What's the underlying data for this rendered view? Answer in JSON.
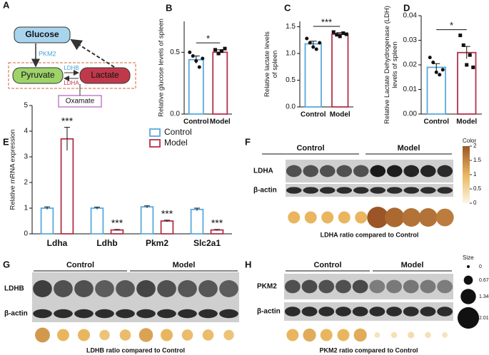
{
  "panel_labels": [
    "A",
    "B",
    "C",
    "D",
    "E",
    "F",
    "G",
    "H"
  ],
  "diagram": {
    "nodes": [
      "Glucose",
      "Pyruvate",
      "Lactate",
      "Oxamate"
    ],
    "edge_labels": [
      "PKM2",
      "LDHB",
      "LDHA"
    ]
  },
  "chart_data": [
    {
      "type": "bar",
      "y_label": [
        "Relative glucose levels of spleen"
      ],
      "categories": [
        "Control",
        "Model"
      ],
      "colors": [
        "#5aa9dc",
        "#b5314a"
      ],
      "values": [
        0.44,
        0.5
      ],
      "errors": [
        0.03,
        0.02
      ],
      "points": [
        [
          0.5,
          0.47,
          0.43,
          0.38,
          0.45
        ],
        [
          0.52,
          0.49,
          0.51,
          0.53
        ]
      ],
      "ylim": [
        0,
        0.75
      ],
      "yticks": [
        {
          "value": 0,
          "label": "0.0"
        },
        {
          "value": 0.5,
          "label": "0.5"
        }
      ],
      "significance": "*"
    },
    {
      "type": "bar",
      "y_label": [
        "Relative lactate levels",
        "of spleen"
      ],
      "categories": [
        "Control",
        "Model"
      ],
      "colors": [
        "#5aa9dc",
        "#b5314a"
      ],
      "values": [
        1.18,
        1.36
      ],
      "errors": [
        0.05,
        0.03
      ],
      "points": [
        [
          1.28,
          1.2,
          1.12,
          1.08,
          1.2
        ],
        [
          1.4,
          1.35,
          1.32,
          1.38,
          1.36
        ]
      ],
      "ylim": [
        0,
        1.6
      ],
      "yticks": [
        {
          "value": 0,
          "label": "0.0"
        },
        {
          "value": 0.5,
          "label": "0.5"
        },
        {
          "value": 1,
          "label": "1.0"
        },
        {
          "value": 1.5,
          "label": "1.5"
        }
      ],
      "significance": "***"
    },
    {
      "type": "bar",
      "y_label": [
        "Relative Lactate Dehydrogenase (LDH)",
        "levels of spleen"
      ],
      "categories": [
        "Control",
        "Model"
      ],
      "colors": [
        "#5aa9dc",
        "#b5314a"
      ],
      "values": [
        0.019,
        0.025
      ],
      "errors": [
        0.0015,
        0.0025
      ],
      "points": [
        [
          0.023,
          0.021,
          0.017,
          0.016,
          0.018
        ],
        [
          0.032,
          0.028,
          0.02,
          0.024,
          0.019
        ]
      ],
      "ylim": [
        0,
        0.04
      ],
      "yticks": [
        {
          "value": 0,
          "label": "0.00"
        },
        {
          "value": 0.01,
          "label": "0.01"
        },
        {
          "value": 0.02,
          "label": "0.02"
        },
        {
          "value": 0.03,
          "label": "0.03"
        },
        {
          "value": 0.04,
          "label": "0.04"
        }
      ],
      "significance": "*"
    },
    {
      "type": "grouped-bar",
      "y_label": [
        "Relative mRNA expression"
      ],
      "categories": [
        "Ldha",
        "Ldhb",
        "Pkm2",
        "Slc2a1"
      ],
      "series": [
        {
          "name": "Control",
          "color": "#5aa9dc",
          "values": [
            1,
            1,
            1.05,
            0.95
          ],
          "errors": [
            0.05,
            0.04,
            0.04,
            0.05
          ]
        },
        {
          "name": "Model",
          "color": "#b5314a",
          "values": [
            3.7,
            0.15,
            0.5,
            0.15
          ],
          "errors": [
            0.45,
            0.02,
            0.03,
            0.02
          ]
        }
      ],
      "annotations": [
        "***",
        "***",
        "***",
        "***"
      ],
      "ylim": [
        0,
        5
      ],
      "yticks": [
        0,
        1,
        2,
        3,
        4,
        5
      ]
    }
  ],
  "blots": [
    {
      "groups": [
        "Control",
        "Model"
      ],
      "rows": [
        "LDHA",
        "β-actin"
      ],
      "caption": "LDHA ratio compared to Control",
      "ratios": [
        1,
        1,
        1,
        1,
        1,
        2.0,
        1.8,
        1.7,
        1.7,
        1.6
      ]
    },
    {
      "groups": [
        "Control",
        "Model"
      ],
      "rows": [
        "LDHB",
        "β-actin"
      ],
      "caption": "LDHB ratio compared to Control",
      "ratios": [
        1.3,
        1.0,
        1.0,
        0.8,
        0.9,
        1.2,
        1.0,
        0.9,
        0.9,
        0.8
      ]
    },
    {
      "groups": [
        "Control",
        "Model"
      ],
      "rows": [
        "PKM2",
        "β-actin"
      ],
      "caption": "PKM2 ratio compared to Control",
      "ratios": [
        1.0,
        1.1,
        1.0,
        1.0,
        1.1,
        0.3,
        0.35,
        0.4,
        0.35,
        0.3
      ]
    }
  ],
  "legend": {
    "color_title": "Color",
    "color_ticks": [
      2,
      1.5,
      1,
      0.5,
      0
    ],
    "size_title": "Size",
    "size_ticks": [
      0,
      0.67,
      1.34,
      2.01
    ]
  }
}
